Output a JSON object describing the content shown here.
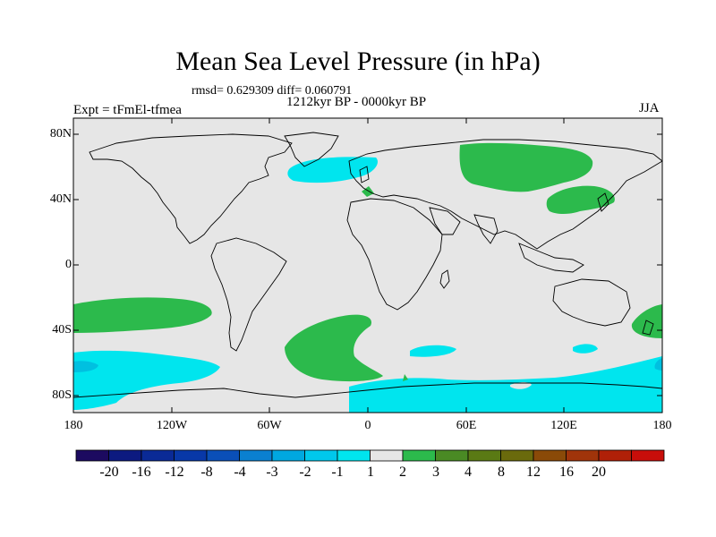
{
  "header": {
    "title": "Mean Sea Level Pressure (in hPa)",
    "stats": "rmsd= 0.629309 diff= 0.060791",
    "period": "1212kyr BP - 0000kyr BP",
    "experiment": "Expt = tFmEl-tfmea",
    "season": "JJA"
  },
  "map": {
    "projection": "cylindrical equidistant",
    "lon_range": [
      -180,
      180
    ],
    "lat_range": [
      -90,
      90
    ],
    "lat_ticks": [
      "80N",
      "40N",
      "0",
      "40S",
      "80S"
    ],
    "lon_ticks": [
      "180",
      "120W",
      "60W",
      "0",
      "60E",
      "120E",
      "180"
    ],
    "background_color": "#e6e6e6",
    "coastline_color": "#000000"
  },
  "anomaly_regions": [
    {
      "name": "north-atlantic-low",
      "class": "-2 to -1",
      "color": "#00e5ee"
    },
    {
      "name": "siberia-high",
      "class": "1 to 2",
      "color": "#2cba4c"
    },
    {
      "name": "east-asia-high",
      "class": "1 to 2",
      "color": "#2cba4c"
    },
    {
      "name": "europe-high",
      "class": "1 to 2",
      "color": "#2cba4c"
    },
    {
      "name": "south-pacific-high",
      "class": "1 to 2",
      "color": "#2cba4c"
    },
    {
      "name": "south-atlantic-high",
      "class": "1 to 2",
      "color": "#2cba4c"
    },
    {
      "name": "tasman-high",
      "class": "1 to 2",
      "color": "#2cba4c"
    },
    {
      "name": "southern-ocean-low",
      "class": "-2 to -1",
      "color": "#00e5ee"
    },
    {
      "name": "southern-ocean-low-deep",
      "class": "-3 to -2",
      "color": "#00c0e0"
    }
  ],
  "colorbar": {
    "labels": [
      "-20",
      "-16",
      "-12",
      "-8",
      "-4",
      "-3",
      "-2",
      "-1",
      "1",
      "2",
      "3",
      "4",
      "8",
      "12",
      "16",
      "20"
    ],
    "colors": [
      "#1c0a60",
      "#0c1a80",
      "#0a2a96",
      "#0838a8",
      "#0a4fb8",
      "#0a80d0",
      "#00a8e0",
      "#00c8ec",
      "#00e5ee",
      "#e6e6e6",
      "#2cba4c",
      "#4a8a24",
      "#5a7a14",
      "#6a6a0c",
      "#8a4a08",
      "#a0340a",
      "#b02008",
      "#c80e0a"
    ]
  }
}
